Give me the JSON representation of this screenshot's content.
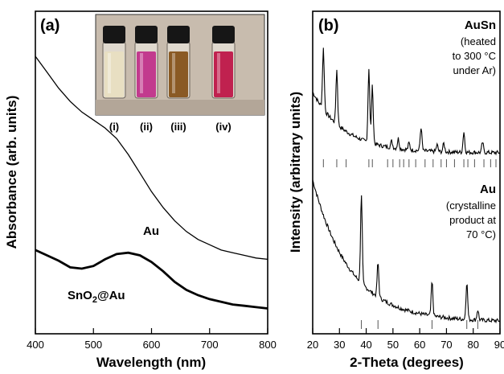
{
  "chart_data": [
    {
      "type": "line",
      "panel_label": "(a)",
      "xlabel": "Wavelength (nm)",
      "ylabel": "Absorbance (arb. units)",
      "xlim": [
        400,
        800
      ],
      "xticks": [
        400,
        500,
        600,
        700,
        800
      ],
      "yticks": false,
      "grid": false,
      "series": [
        {
          "name": "Au",
          "x": [
            400,
            420,
            440,
            460,
            480,
            500,
            520,
            540,
            560,
            580,
            600,
            620,
            640,
            660,
            680,
            700,
            720,
            740,
            760,
            780,
            800
          ],
          "y": [
            1.0,
            0.94,
            0.88,
            0.83,
            0.79,
            0.76,
            0.73,
            0.69,
            0.63,
            0.56,
            0.49,
            0.43,
            0.38,
            0.34,
            0.31,
            0.29,
            0.27,
            0.26,
            0.25,
            0.24,
            0.235
          ]
        },
        {
          "name": "SnO2@Au",
          "x": [
            400,
            420,
            440,
            460,
            480,
            500,
            520,
            540,
            560,
            580,
            600,
            620,
            640,
            660,
            680,
            700,
            720,
            740,
            760,
            780,
            800
          ],
          "y": [
            0.27,
            0.25,
            0.23,
            0.205,
            0.2,
            0.21,
            0.235,
            0.255,
            0.26,
            0.25,
            0.225,
            0.19,
            0.15,
            0.12,
            0.1,
            0.085,
            0.075,
            0.065,
            0.06,
            0.055,
            0.05
          ]
        }
      ],
      "annotations": [
        {
          "text": "Au",
          "x": 560,
          "y": 0.45
        },
        {
          "text": "SnO",
          "sub": "2",
          "suffix": "@Au",
          "x": 500,
          "y": 0.16
        }
      ],
      "inset": {
        "vial_labels": [
          "(i)",
          "(ii)",
          "(iii)",
          "(iv)"
        ],
        "vial_colors": [
          "#e8dfc2",
          "#c23a8e",
          "#8a5a24",
          "#c0214f"
        ],
        "background_color": "#c8bcae"
      }
    },
    {
      "type": "line",
      "panel_label": "(b)",
      "xlabel": "2-Theta (degrees)",
      "ylabel": "Intensity (arbitrary units)",
      "xlim": [
        20,
        90
      ],
      "xticks": [
        20,
        30,
        40,
        50,
        60,
        70,
        80,
        90
      ],
      "yticks": false,
      "grid": false,
      "series": [
        {
          "name": "AuSn",
          "peaks": [
            {
              "x": 24.0,
              "h": 0.18
            },
            {
              "x": 29.0,
              "h": 0.16
            },
            {
              "x": 41.0,
              "h": 0.22
            },
            {
              "x": 42.3,
              "h": 0.17
            },
            {
              "x": 49.5,
              "h": 0.02
            },
            {
              "x": 52.0,
              "h": 0.03
            },
            {
              "x": 56.0,
              "h": 0.02
            },
            {
              "x": 60.5,
              "h": 0.07
            },
            {
              "x": 66.5,
              "h": 0.02
            },
            {
              "x": 69.0,
              "h": 0.025
            },
            {
              "x": 76.5,
              "h": 0.06
            },
            {
              "x": 83.5,
              "h": 0.03
            }
          ],
          "reference_ticks": [
            24.0,
            29.0,
            32.5,
            41.0,
            42.3,
            48.0,
            50.0,
            52.5,
            54.0,
            56.0,
            58.5,
            62.0,
            65.0,
            68.0,
            70.0,
            73.0,
            76.5,
            78.0,
            80.5,
            84.0,
            86.5,
            88.5
          ]
        },
        {
          "name": "Au",
          "peaks": [
            {
              "x": 38.2,
              "h": 0.26
            },
            {
              "x": 44.4,
              "h": 0.1
            },
            {
              "x": 64.6,
              "h": 0.1
            },
            {
              "x": 77.6,
              "h": 0.11
            },
            {
              "x": 81.7,
              "h": 0.03
            }
          ],
          "reference_ticks": [
            38.2,
            44.4,
            64.6,
            77.6,
            81.7
          ]
        }
      ],
      "annotations": [
        {
          "lines": [
            "AuSn",
            "(heated",
            "to 300 °C",
            "under Ar)"
          ]
        },
        {
          "lines": [
            "Au",
            "(crystalline",
            "product at",
            "70 °C)"
          ]
        }
      ]
    }
  ]
}
